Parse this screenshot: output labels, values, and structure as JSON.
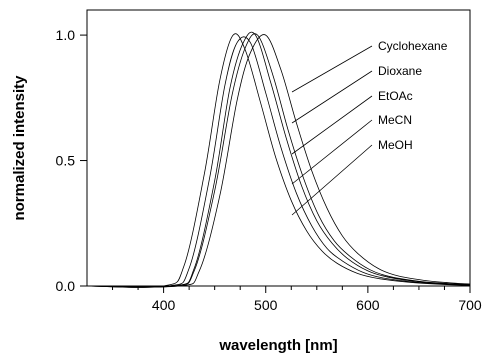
{
  "chart_data": {
    "type": "line",
    "title": "",
    "xlabel": "wavelength [nm]",
    "ylabel": "normalized intensity",
    "xlim": [
      325,
      700
    ],
    "ylim": [
      0,
      1.1
    ],
    "x_major_ticks": [
      400,
      500,
      600,
      700
    ],
    "x_minor_ticks": [
      350,
      375,
      425,
      450,
      475,
      525,
      550,
      575,
      625,
      650,
      675
    ],
    "y_major_ticks": [
      0.0,
      0.5,
      1.0
    ],
    "x_tick_labels": [
      "400",
      "500",
      "600",
      "700"
    ],
    "y_tick_labels": [
      "0.0",
      "0.5",
      "1.0"
    ],
    "grid": false,
    "legend": "annotated labels at top-right with leader lines",
    "series": [
      {
        "name": "Cyclohexane",
        "x": [
          400,
          420,
          440,
          455,
          468,
          480,
          495,
          510,
          525,
          540,
          555,
          570,
          590,
          610,
          640,
          670,
          700
        ],
        "values": [
          0.0,
          0.08,
          0.45,
          0.82,
          1.0,
          0.94,
          0.73,
          0.51,
          0.34,
          0.22,
          0.14,
          0.09,
          0.05,
          0.03,
          0.015,
          0.007,
          0.003
        ]
      },
      {
        "name": "Dioxane",
        "x": [
          405,
          425,
          445,
          460,
          472,
          485,
          500,
          515,
          530,
          545,
          560,
          575,
          595,
          615,
          645,
          675,
          700
        ],
        "values": [
          0.0,
          0.07,
          0.43,
          0.8,
          0.97,
          0.97,
          0.77,
          0.55,
          0.37,
          0.24,
          0.15,
          0.1,
          0.055,
          0.032,
          0.016,
          0.008,
          0.004
        ]
      },
      {
        "name": "EtOAc",
        "x": [
          410,
          430,
          450,
          465,
          478,
          490,
          505,
          520,
          535,
          550,
          565,
          580,
          600,
          620,
          650,
          680,
          700
        ],
        "values": [
          0.0,
          0.07,
          0.42,
          0.79,
          0.97,
          1.0,
          0.81,
          0.59,
          0.4,
          0.26,
          0.17,
          0.11,
          0.06,
          0.035,
          0.017,
          0.008,
          0.005
        ]
      },
      {
        "name": "MeCN",
        "x": [
          410,
          430,
          450,
          467,
          480,
          492,
          507,
          522,
          537,
          552,
          567,
          582,
          602,
          622,
          652,
          682,
          700
        ],
        "values": [
          0.0,
          0.06,
          0.38,
          0.76,
          0.95,
          1.0,
          0.84,
          0.62,
          0.43,
          0.28,
          0.18,
          0.12,
          0.065,
          0.037,
          0.018,
          0.009,
          0.006
        ]
      },
      {
        "name": "MeOH",
        "x": [
          415,
          435,
          455,
          472,
          485,
          500,
          515,
          530,
          545,
          560,
          575,
          590,
          610,
          630,
          660,
          690,
          700
        ],
        "values": [
          0.0,
          0.06,
          0.36,
          0.74,
          0.93,
          1.0,
          0.86,
          0.65,
          0.46,
          0.31,
          0.2,
          0.13,
          0.07,
          0.04,
          0.02,
          0.01,
          0.008
        ]
      }
    ]
  }
}
